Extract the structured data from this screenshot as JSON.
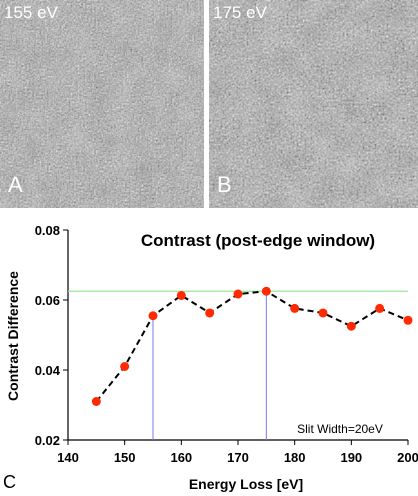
{
  "panels": [
    {
      "energy_label": "155 eV",
      "letter": "A"
    },
    {
      "energy_label": "175 eV",
      "letter": "B"
    }
  ],
  "figure_letter": "C",
  "chart_data": {
    "type": "line",
    "title": "Contrast (post-edge window)",
    "xlabel": "Energy Loss [eV]",
    "ylabel": "Contrast Difference",
    "xlim": [
      140,
      200
    ],
    "ylim": [
      0.02,
      0.08
    ],
    "xticks": [
      "140",
      "150",
      "160",
      "170",
      "180",
      "190",
      "200"
    ],
    "yticks": [
      "0.02",
      "0.04",
      "0.06",
      "0.08"
    ],
    "annotation": "Slit Width=20eV",
    "reference_line_y": 0.0625,
    "highlight_x": [
      155,
      175
    ],
    "series": [
      {
        "x": [
          145,
          150,
          155,
          160,
          165,
          170,
          175,
          180,
          185,
          190,
          195,
          200
        ],
        "y": [
          0.031,
          0.041,
          0.0555,
          0.0613,
          0.0563,
          0.0617,
          0.0625,
          0.0576,
          0.0563,
          0.0525,
          0.0576,
          0.0542
        ]
      }
    ],
    "colors": {
      "marker": "#ff2a00",
      "line": "#000000",
      "reference": "#99e699",
      "highlight": "#7777ee"
    }
  }
}
